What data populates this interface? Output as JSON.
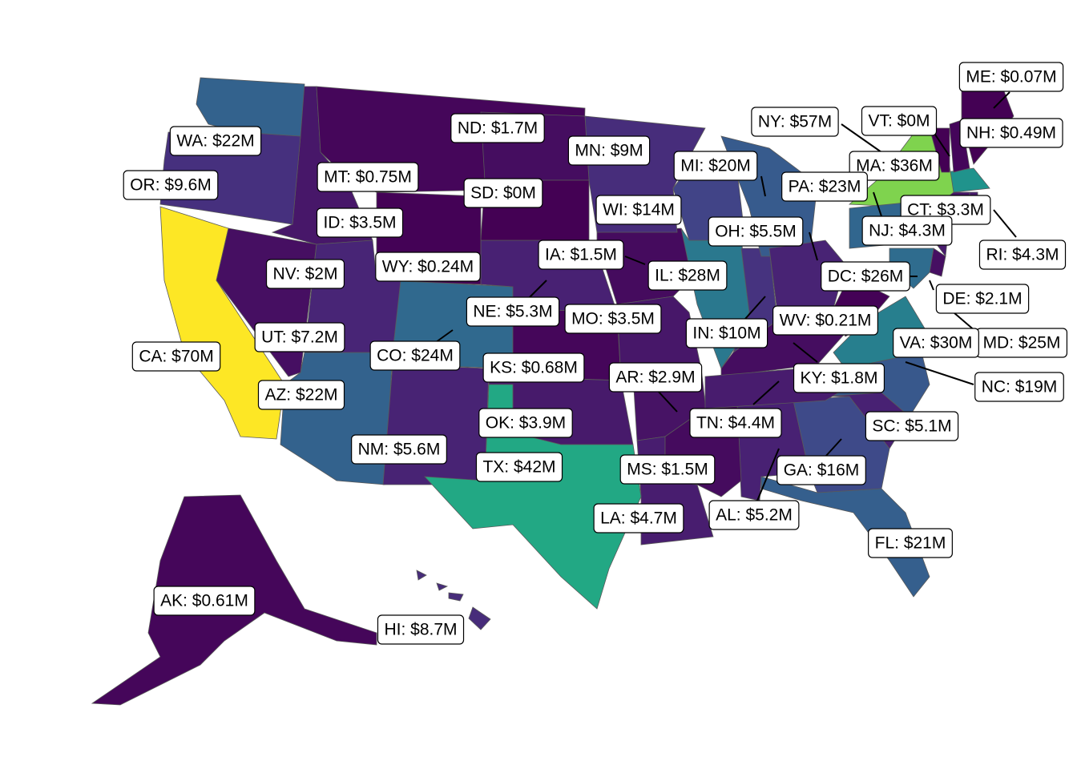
{
  "chart_data": {
    "type": "choropleth",
    "labels": [
      "AK: $0.61M",
      "AL: $5.2M",
      "AR: $2.9M",
      "AZ: $22M",
      "CA: $70M",
      "CO: $24M",
      "CT: $3.3M",
      "DC: $26M",
      "DE: $2.1M",
      "FL: $21M",
      "GA: $16M",
      "HI: $8.7M",
      "IA: $1.5M",
      "ID: $3.5M",
      "IL: $28M",
      "IN: $10M",
      "KS: $0.68M",
      "KY: $1.8M",
      "LA: $4.7M",
      "MA: $36M",
      "MD: $25M",
      "ME: $0.07M",
      "MI: $20M",
      "MN: $9M",
      "MO: $3.5M",
      "MS: $1.5M",
      "MT: $0.75M",
      "NC: $19M",
      "ND: $1.7M",
      "NE: $5.3M",
      "NH: $0.49M",
      "NJ: $4.3M",
      "NM: $5.6M",
      "NV: $2M",
      "NY: $57M",
      "OH: $5.5M",
      "OK: $3.9M",
      "OR: $9.6M",
      "PA: $23M",
      "RI: $4.3M",
      "SC: $5.1M",
      "SD: $0M",
      "TN: $4.4M",
      "TX: $42M",
      "UT: $7.2M",
      "VA: $30M",
      "VT: $0M",
      "WA: $22M",
      "WI: $14M",
      "WV: $0.21M",
      "WY: $0.24M"
    ],
    "values": [
      0.61,
      5.2,
      2.9,
      22,
      70,
      24,
      3.3,
      26,
      2.1,
      21,
      16,
      8.7,
      1.5,
      3.5,
      28,
      10,
      0.68,
      1.8,
      4.7,
      36,
      25,
      0.07,
      20,
      9,
      3.5,
      1.5,
      0.75,
      19,
      1.7,
      5.3,
      0.49,
      4.3,
      5.6,
      2,
      57,
      5.5,
      3.9,
      9.6,
      23,
      4.3,
      5.1,
      0,
      4.4,
      42,
      7.2,
      30,
      0,
      22,
      14,
      0.21,
      0.24
    ],
    "colors": [
      "#45065a",
      "#482173",
      "#471365",
      "#33628d",
      "#fde725",
      "#30698e",
      "#471668",
      "#2d708e",
      "#460f62",
      "#355f8d",
      "#3e4a89",
      "#472c7a",
      "#450b5e",
      "#471769",
      "#2a788e",
      "#46337f",
      "#45065a",
      "#450d60",
      "#481d6f",
      "#20938c",
      "#2f6c8e",
      "#440154",
      "#375b8d",
      "#472d7b",
      "#471769",
      "#450b5e",
      "#45065a",
      "#38588c",
      "#450d60",
      "#482173",
      "#44055a",
      "#481b6d",
      "#482374",
      "#460f62",
      "#7fd34e",
      "#482374",
      "#471a6b",
      "#46307e",
      "#31668e",
      "#481b6d",
      "#482173",
      "#440154",
      "#481c6e",
      "#22a884",
      "#482576",
      "#277f8e",
      "#440154",
      "#33628d",
      "#414487",
      "#440256",
      "#440256"
    ]
  }
}
